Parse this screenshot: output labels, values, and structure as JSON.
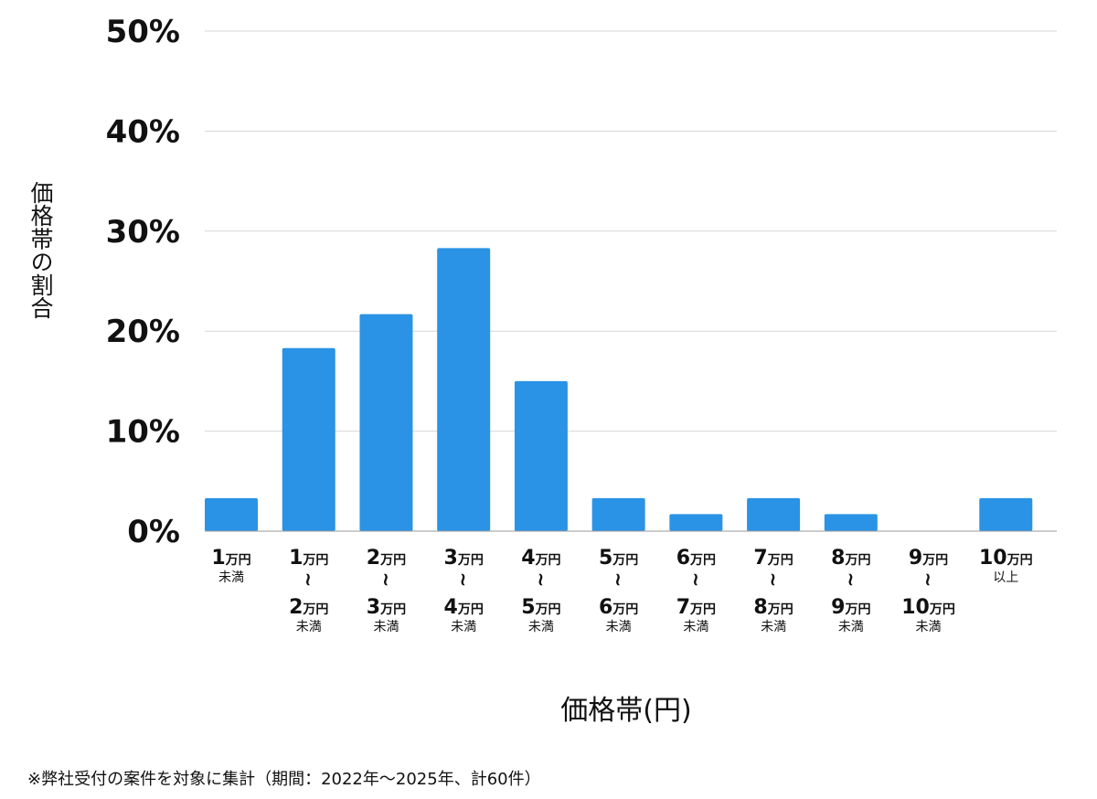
{
  "chart_data": {
    "type": "bar",
    "categories": [
      {
        "top": "1",
        "top_unit": "万円",
        "tilde": "",
        "bottom": "",
        "bottom_unit": "",
        "suffix": "未満"
      },
      {
        "top": "1",
        "top_unit": "万円",
        "tilde": "~",
        "bottom": "2",
        "bottom_unit": "万円",
        "suffix": "未満"
      },
      {
        "top": "2",
        "top_unit": "万円",
        "tilde": "~",
        "bottom": "3",
        "bottom_unit": "万円",
        "suffix": "未満"
      },
      {
        "top": "3",
        "top_unit": "万円",
        "tilde": "~",
        "bottom": "4",
        "bottom_unit": "万円",
        "suffix": "未満"
      },
      {
        "top": "4",
        "top_unit": "万円",
        "tilde": "~",
        "bottom": "5",
        "bottom_unit": "万円",
        "suffix": "未満"
      },
      {
        "top": "5",
        "top_unit": "万円",
        "tilde": "~",
        "bottom": "6",
        "bottom_unit": "万円",
        "suffix": "未満"
      },
      {
        "top": "6",
        "top_unit": "万円",
        "tilde": "~",
        "bottom": "7",
        "bottom_unit": "万円",
        "suffix": "未満"
      },
      {
        "top": "7",
        "top_unit": "万円",
        "tilde": "~",
        "bottom": "8",
        "bottom_unit": "万円",
        "suffix": "未満"
      },
      {
        "top": "8",
        "top_unit": "万円",
        "tilde": "~",
        "bottom": "9",
        "bottom_unit": "万円",
        "suffix": "未満"
      },
      {
        "top": "9",
        "top_unit": "万円",
        "tilde": "~",
        "bottom": "10",
        "bottom_unit": "万円",
        "suffix": "未満"
      },
      {
        "top": "10",
        "top_unit": "万円",
        "tilde": "",
        "bottom": "",
        "bottom_unit": "",
        "suffix": "以上"
      }
    ],
    "values": [
      3.3,
      18.3,
      21.7,
      28.3,
      15.0,
      3.3,
      1.7,
      3.3,
      1.7,
      0,
      3.3
    ],
    "ylim": [
      0,
      50
    ],
    "yticks": [
      0,
      10,
      20,
      30,
      40,
      50
    ],
    "ytick_labels": [
      "0%",
      "10%",
      "20%",
      "30%",
      "40%",
      "50%"
    ],
    "ylabel": "価格帯の割合",
    "xlabel": "価格帯(円)",
    "grid": true,
    "bar_color": "#2a93e5",
    "grid_color": "#d6d6d6",
    "axis_color": "#9a9a9a"
  },
  "footnote": "※弊社受付の案件を対象に集計（期間：2022年〜2025年、計60件）"
}
